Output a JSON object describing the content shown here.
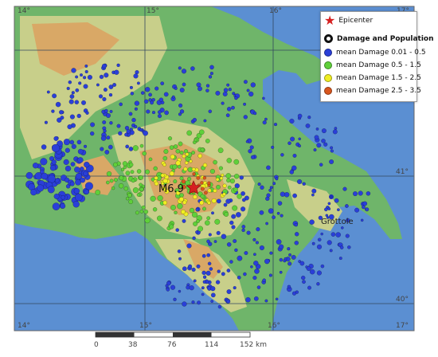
{
  "coords": {
    "lon_top": [
      "14°",
      "15°",
      "16°",
      "17°"
    ],
    "lon_bottom": [
      "14°",
      "15°",
      "16°",
      "17°"
    ],
    "lat_right": [
      "41°",
      "40°"
    ]
  },
  "epicenter_label": "M6.9",
  "city": "Grottole",
  "legend": {
    "epicenter": "Epicenter",
    "title": "Damage and Population",
    "items": [
      {
        "label": "mean Damage 0.01 - 0.5",
        "color": "#2a3fd8"
      },
      {
        "label": "mean Damage 0.5 - 1.5",
        "color": "#5fd03a"
      },
      {
        "label": "mean Damage 1.5 - 2.5",
        "color": "#f0ee22"
      },
      {
        "label": "mean Damage 2.5 - 3.5",
        "color": "#d8561e"
      }
    ]
  },
  "scale": {
    "ticks": [
      "0",
      "38",
      "76",
      "114",
      "152 km"
    ]
  },
  "colors": {
    "sea": "#5b8fd2",
    "lowland": "#6fb56a",
    "hills": "#c8cf8a",
    "mountain": "#d9a866",
    "epicenter": "#d62020"
  }
}
